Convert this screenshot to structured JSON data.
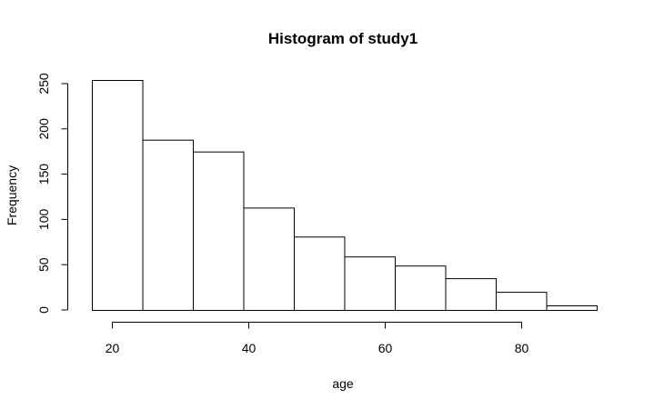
{
  "chart_data": {
    "type": "bar",
    "title": "Histogram of study1",
    "xlabel": "age",
    "ylabel": "Frequency",
    "bins": [
      {
        "x0": 17,
        "x1": 24.4,
        "count": 254
      },
      {
        "x0": 24.4,
        "x1": 31.8,
        "count": 188
      },
      {
        "x0": 31.8,
        "x1": 39.2,
        "count": 175
      },
      {
        "x0": 39.2,
        "x1": 46.6,
        "count": 113
      },
      {
        "x0": 46.6,
        "x1": 54.0,
        "count": 81
      },
      {
        "x0": 54.0,
        "x1": 61.4,
        "count": 59
      },
      {
        "x0": 61.4,
        "x1": 68.8,
        "count": 49
      },
      {
        "x0": 68.8,
        "x1": 76.2,
        "count": 35
      },
      {
        "x0": 76.2,
        "x1": 83.6,
        "count": 20
      },
      {
        "x0": 83.6,
        "x1": 91.0,
        "count": 5
      }
    ],
    "xticks": [
      20,
      40,
      60,
      80
    ],
    "yticks": [
      0,
      50,
      100,
      150,
      200,
      250
    ],
    "xlim": [
      17,
      91
    ],
    "ylim": [
      0,
      254
    ],
    "grid": false,
    "legend": "none"
  }
}
